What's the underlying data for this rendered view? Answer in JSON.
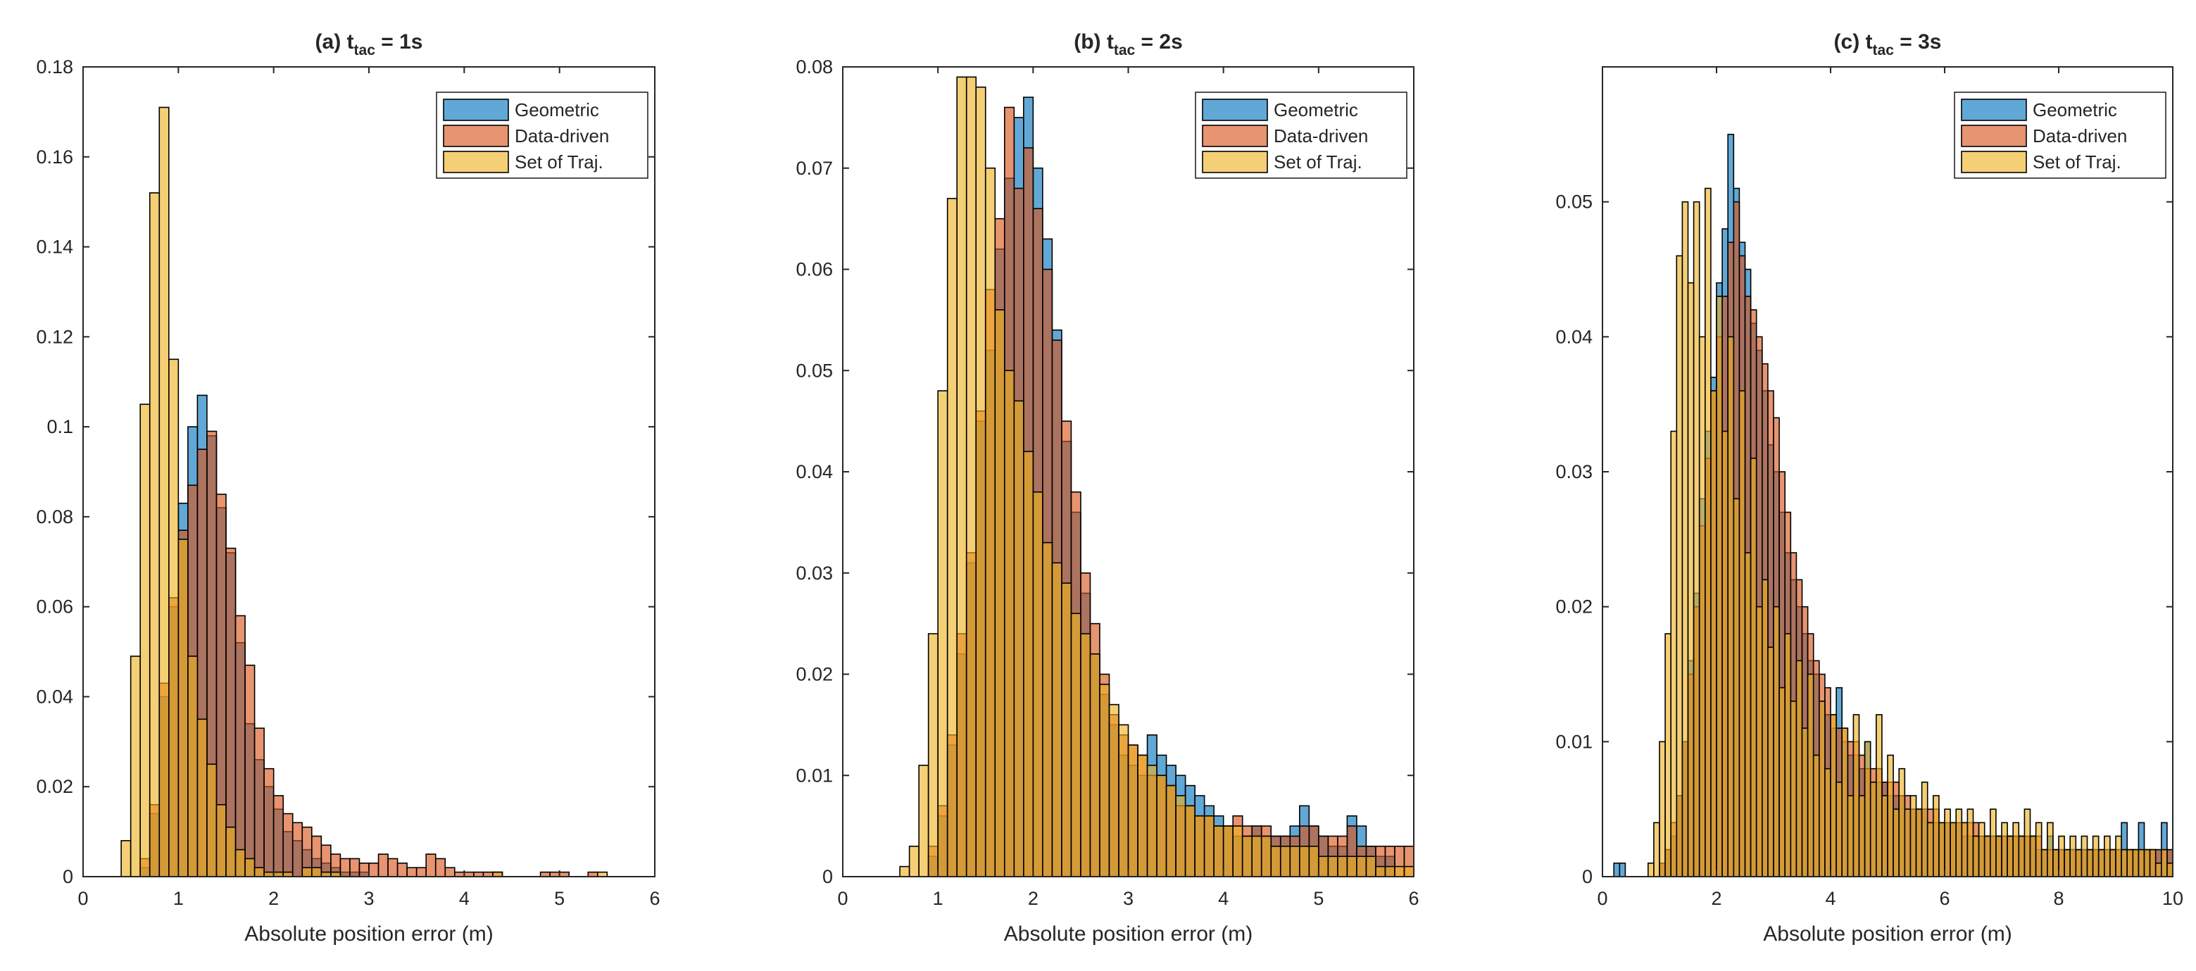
{
  "figure": {
    "xlabel_common": "Absolute position error (m)"
  },
  "legend_labels": [
    "Geometric",
    "Data-driven",
    "Set of Traj."
  ],
  "colors": {
    "Geometric": "#0072bd",
    "Data-driven": "#d95319",
    "Set of Traj.": "#edb120"
  },
  "chart_data": [
    {
      "type": "bar",
      "title_prefix": "(a) t",
      "title_sub": "tac",
      "title_suffix": " = 1s",
      "xlabel": "Absolute position error (m)",
      "ylabel": "",
      "xlim": [
        0,
        6
      ],
      "ylim": [
        0,
        0.18
      ],
      "xticks": [
        0,
        1,
        2,
        3,
        4,
        5,
        6
      ],
      "yticks": [
        0,
        0.02,
        0.04,
        0.06,
        0.08,
        0.1,
        0.12,
        0.14,
        0.16,
        0.18
      ],
      "xtick_labels": [
        "0",
        "1",
        "2",
        "3",
        "4",
        "5",
        "6"
      ],
      "ytick_labels": [
        "0",
        "0.02",
        "0.04",
        "0.06",
        "0.08",
        "0.1",
        "0.12",
        "0.14",
        "0.16",
        "0.18"
      ],
      "bin_start": 0.4,
      "bin_width": 0.1,
      "legend_position": "top-right",
      "series": [
        {
          "name": "Geometric",
          "values": [
            0.0,
            0.0,
            0.002,
            0.014,
            0.04,
            0.06,
            0.083,
            0.1,
            0.107,
            0.098,
            0.082,
            0.072,
            0.052,
            0.034,
            0.026,
            0.02,
            0.015,
            0.01,
            0.008,
            0.006,
            0.004,
            0.003,
            0.002,
            0.001,
            0.001,
            0.001,
            0.0,
            0.0,
            0.0,
            0.0,
            0.0,
            0.0,
            0.0,
            0.0,
            0.0,
            0.0,
            0.0,
            0.0,
            0.0,
            0.0,
            0.0,
            0.0,
            0.0,
            0.0,
            0.0,
            0.0,
            0.0,
            0.0,
            0.0,
            0.0,
            0.0,
            0.0,
            0.0,
            0.0
          ]
        },
        {
          "name": "Data-driven",
          "values": [
            0.0,
            0.0,
            0.004,
            0.016,
            0.043,
            0.062,
            0.077,
            0.087,
            0.095,
            0.099,
            0.085,
            0.073,
            0.058,
            0.047,
            0.033,
            0.024,
            0.018,
            0.014,
            0.012,
            0.011,
            0.009,
            0.007,
            0.005,
            0.004,
            0.004,
            0.003,
            0.003,
            0.005,
            0.004,
            0.003,
            0.002,
            0.002,
            0.005,
            0.004,
            0.002,
            0.001,
            0.001,
            0.001,
            0.001,
            0.001,
            0.0,
            0.0,
            0.0,
            0.0,
            0.001,
            0.001,
            0.001,
            0.0,
            0.0,
            0.001,
            0.0,
            0.0,
            0.0,
            0.0
          ]
        },
        {
          "name": "Set of Traj.",
          "values": [
            0.008,
            0.049,
            0.105,
            0.152,
            0.171,
            0.115,
            0.075,
            0.049,
            0.035,
            0.025,
            0.016,
            0.011,
            0.006,
            0.004,
            0.002,
            0.001,
            0.001,
            0.001,
            0.0,
            0.002,
            0.002,
            0.001,
            0.001,
            0.0,
            0.0,
            0.0,
            0.0,
            0.0,
            0.0,
            0.0,
            0.0,
            0.0,
            0.0,
            0.0,
            0.0,
            0.0,
            0.0,
            0.0,
            0.0,
            0.001,
            0.0,
            0.0,
            0.0,
            0.0,
            0.0,
            0.0,
            0.0,
            0.0,
            0.0,
            0.0,
            0.001,
            0.0,
            0.0,
            0.0
          ]
        }
      ]
    },
    {
      "type": "bar",
      "title_prefix": "(b) t",
      "title_sub": "tac",
      "title_suffix": " = 2s",
      "xlabel": "Absolute position error (m)",
      "ylabel": "",
      "xlim": [
        0,
        6
      ],
      "ylim": [
        0,
        0.08
      ],
      "xticks": [
        0,
        1,
        2,
        3,
        4,
        5,
        6
      ],
      "yticks": [
        0,
        0.01,
        0.02,
        0.03,
        0.04,
        0.05,
        0.06,
        0.07,
        0.08
      ],
      "xtick_labels": [
        "0",
        "1",
        "2",
        "3",
        "4",
        "5",
        "6"
      ],
      "ytick_labels": [
        "0",
        "0.01",
        "0.02",
        "0.03",
        "0.04",
        "0.05",
        "0.06",
        "0.07",
        "0.08"
      ],
      "bin_start": 0.5,
      "bin_width": 0.1,
      "legend_position": "top-right",
      "series": [
        {
          "name": "Geometric",
          "values": [
            0.0,
            0.0,
            0.0,
            0.0,
            0.002,
            0.006,
            0.013,
            0.022,
            0.031,
            0.045,
            0.052,
            0.062,
            0.069,
            0.075,
            0.077,
            0.07,
            0.063,
            0.054,
            0.043,
            0.036,
            0.028,
            0.022,
            0.018,
            0.015,
            0.012,
            0.011,
            0.01,
            0.014,
            0.012,
            0.011,
            0.01,
            0.009,
            0.008,
            0.007,
            0.006,
            0.005,
            0.004,
            0.004,
            0.005,
            0.004,
            0.004,
            0.004,
            0.005,
            0.007,
            0.005,
            0.004,
            0.003,
            0.003,
            0.006,
            0.005,
            0.003,
            0.002,
            0.002,
            0.0,
            0.0
          ]
        },
        {
          "name": "Data-driven",
          "values": [
            0.0,
            0.0,
            0.0,
            0.0,
            0.003,
            0.007,
            0.014,
            0.024,
            0.032,
            0.046,
            0.058,
            0.065,
            0.076,
            0.068,
            0.072,
            0.066,
            0.06,
            0.053,
            0.045,
            0.038,
            0.03,
            0.025,
            0.02,
            0.016,
            0.014,
            0.013,
            0.012,
            0.01,
            0.01,
            0.009,
            0.007,
            0.007,
            0.006,
            0.006,
            0.005,
            0.005,
            0.006,
            0.005,
            0.005,
            0.005,
            0.004,
            0.004,
            0.004,
            0.005,
            0.005,
            0.004,
            0.004,
            0.004,
            0.005,
            0.003,
            0.003,
            0.003,
            0.003,
            0.003,
            0.003
          ]
        },
        {
          "name": "Set of Traj.",
          "values": [
            0.0,
            0.001,
            0.003,
            0.011,
            0.024,
            0.048,
            0.067,
            0.079,
            0.079,
            0.078,
            0.07,
            0.056,
            0.05,
            0.047,
            0.042,
            0.038,
            0.033,
            0.031,
            0.029,
            0.026,
            0.024,
            0.022,
            0.019,
            0.017,
            0.015,
            0.013,
            0.012,
            0.011,
            0.01,
            0.009,
            0.008,
            0.007,
            0.006,
            0.006,
            0.005,
            0.005,
            0.005,
            0.004,
            0.004,
            0.004,
            0.003,
            0.003,
            0.003,
            0.003,
            0.003,
            0.002,
            0.002,
            0.002,
            0.002,
            0.002,
            0.002,
            0.001,
            0.001,
            0.001,
            0.001
          ]
        }
      ]
    },
    {
      "type": "bar",
      "title_prefix": "(c) t",
      "title_sub": "tac",
      "title_suffix": " = 3s",
      "xlabel": "Absolute position error (m)",
      "ylabel": "",
      "xlim": [
        0,
        10
      ],
      "ylim": [
        0,
        0.06
      ],
      "xticks": [
        0,
        2,
        4,
        6,
        8,
        10
      ],
      "yticks": [
        0,
        0.01,
        0.02,
        0.03,
        0.04,
        0.05
      ],
      "xtick_labels": [
        "0",
        "2",
        "4",
        "6",
        "8",
        "10"
      ],
      "ytick_labels": [
        "0",
        "0.01",
        "0.02",
        "0.03",
        "0.04",
        "0.05"
      ],
      "bin_start": 0.2,
      "bin_width": 0.1,
      "legend_position": "top-right",
      "series": [
        {
          "name": "Geometric",
          "values": [
            0.001,
            0.001,
            0.0,
            0.0,
            0.0,
            0.0,
            0.0,
            0.0,
            0.001,
            0.002,
            0.003,
            0.006,
            0.01,
            0.016,
            0.021,
            0.028,
            0.033,
            0.037,
            0.044,
            0.048,
            0.055,
            0.051,
            0.047,
            0.045,
            0.041,
            0.039,
            0.036,
            0.032,
            0.03,
            0.027,
            0.024,
            0.022,
            0.02,
            0.018,
            0.016,
            0.015,
            0.013,
            0.012,
            0.011,
            0.014,
            0.01,
            0.009,
            0.009,
            0.008,
            0.01,
            0.007,
            0.007,
            0.007,
            0.006,
            0.006,
            0.006,
            0.005,
            0.005,
            0.005,
            0.005,
            0.004,
            0.004,
            0.004,
            0.004,
            0.004,
            0.004,
            0.003,
            0.003,
            0.003,
            0.003,
            0.003,
            0.003,
            0.003,
            0.003,
            0.003,
            0.003,
            0.003,
            0.003,
            0.003,
            0.002,
            0.002,
            0.003,
            0.002,
            0.002,
            0.002,
            0.002,
            0.002,
            0.002,
            0.002,
            0.002,
            0.002,
            0.002,
            0.002,
            0.002,
            0.004,
            0.002,
            0.002,
            0.004,
            0.002,
            0.002,
            0.002,
            0.004,
            0.002
          ]
        },
        {
          "name": "Data-driven",
          "values": [
            0.0,
            0.0,
            0.0,
            0.0,
            0.0,
            0.0,
            0.0,
            0.0,
            0.001,
            0.002,
            0.004,
            0.006,
            0.01,
            0.015,
            0.02,
            0.026,
            0.031,
            0.036,
            0.04,
            0.043,
            0.047,
            0.05,
            0.046,
            0.043,
            0.042,
            0.04,
            0.038,
            0.036,
            0.034,
            0.03,
            0.027,
            0.024,
            0.022,
            0.02,
            0.018,
            0.016,
            0.015,
            0.014,
            0.012,
            0.011,
            0.011,
            0.01,
            0.01,
            0.009,
            0.008,
            0.008,
            0.008,
            0.007,
            0.007,
            0.007,
            0.006,
            0.006,
            0.005,
            0.005,
            0.005,
            0.005,
            0.005,
            0.004,
            0.004,
            0.004,
            0.004,
            0.004,
            0.004,
            0.004,
            0.003,
            0.003,
            0.003,
            0.003,
            0.003,
            0.003,
            0.003,
            0.003,
            0.003,
            0.003,
            0.003,
            0.002,
            0.002,
            0.002,
            0.002,
            0.002,
            0.002,
            0.002,
            0.002,
            0.002,
            0.002,
            0.002,
            0.002,
            0.002,
            0.002,
            0.002,
            0.002,
            0.002,
            0.002,
            0.002,
            0.002,
            0.002,
            0.002,
            0.002
          ]
        },
        {
          "name": "Set of Traj.",
          "values": [
            0.0,
            0.0,
            0.0,
            0.0,
            0.0,
            0.0,
            0.001,
            0.004,
            0.01,
            0.018,
            0.033,
            0.046,
            0.05,
            0.044,
            0.05,
            0.04,
            0.051,
            0.036,
            0.043,
            0.033,
            0.04,
            0.028,
            0.036,
            0.024,
            0.031,
            0.02,
            0.022,
            0.017,
            0.02,
            0.014,
            0.018,
            0.013,
            0.016,
            0.011,
            0.015,
            0.009,
            0.013,
            0.008,
            0.012,
            0.007,
            0.011,
            0.006,
            0.012,
            0.006,
            0.01,
            0.007,
            0.012,
            0.006,
            0.009,
            0.005,
            0.008,
            0.005,
            0.006,
            0.005,
            0.007,
            0.004,
            0.006,
            0.004,
            0.005,
            0.004,
            0.005,
            0.004,
            0.005,
            0.003,
            0.004,
            0.003,
            0.005,
            0.003,
            0.004,
            0.003,
            0.004,
            0.003,
            0.005,
            0.003,
            0.004,
            0.002,
            0.004,
            0.002,
            0.003,
            0.002,
            0.003,
            0.002,
            0.003,
            0.002,
            0.003,
            0.002,
            0.003,
            0.002,
            0.003,
            0.002,
            0.002,
            0.002,
            0.002,
            0.002,
            0.002,
            0.001,
            0.002,
            0.001
          ]
        }
      ]
    }
  ]
}
